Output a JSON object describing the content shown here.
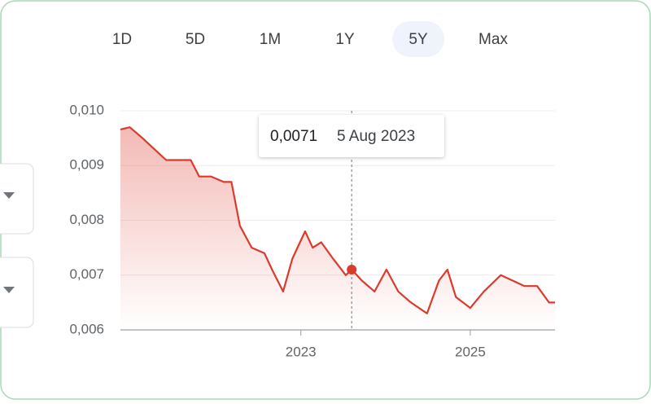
{
  "ranges": [
    "1D",
    "5D",
    "1M",
    "1Y",
    "5Y",
    "Max"
  ],
  "selected_range": 4,
  "chart_data": {
    "type": "line",
    "x": [
      2020.87,
      2020.98,
      2021.13,
      2021.27,
      2021.41,
      2021.56,
      2021.7,
      2021.8,
      2021.94,
      2022.09,
      2022.18,
      2022.28,
      2022.42,
      2022.57,
      2022.66,
      2022.79,
      2022.9,
      2023.05,
      2023.14,
      2023.24,
      2023.38,
      2023.53,
      2023.6,
      2023.72,
      2023.87,
      2024.01,
      2024.15,
      2024.3,
      2024.49,
      2024.63,
      2024.73,
      2024.83,
      2025.0,
      2025.16,
      2025.36,
      2025.5,
      2025.64,
      2025.79,
      2025.93,
      2026.0
    ],
    "values": [
      0.00966,
      0.0097,
      0.0095,
      0.0093,
      0.0091,
      0.0091,
      0.0091,
      0.0088,
      0.0088,
      0.0087,
      0.0087,
      0.0079,
      0.0075,
      0.0074,
      0.0071,
      0.0067,
      0.0073,
      0.0078,
      0.0075,
      0.0076,
      0.0073,
      0.007,
      0.0071,
      0.0069,
      0.0067,
      0.0071,
      0.0067,
      0.0065,
      0.0063,
      0.0069,
      0.0071,
      0.0066,
      0.0064,
      0.0067,
      0.007,
      0.0069,
      0.0068,
      0.0068,
      0.0065,
      0.0065
    ],
    "color": "#dc3a2c",
    "xlim": [
      2020.87,
      2026.0
    ],
    "xticks": [
      2023,
      2025
    ],
    "ylim": [
      0.006,
      0.01
    ],
    "yticks": [
      {
        "value": 0.006,
        "label": "0,006"
      },
      {
        "value": 0.007,
        "label": "0,007"
      },
      {
        "value": 0.008,
        "label": "0,008"
      },
      {
        "value": 0.009,
        "label": "0,009"
      },
      {
        "value": 0.01,
        "label": "0,010"
      }
    ],
    "grid": true,
    "tooltip": {
      "x": 2023.6,
      "value": 0.0071,
      "label": "0,0071",
      "date": "5 Aug 2023"
    }
  }
}
